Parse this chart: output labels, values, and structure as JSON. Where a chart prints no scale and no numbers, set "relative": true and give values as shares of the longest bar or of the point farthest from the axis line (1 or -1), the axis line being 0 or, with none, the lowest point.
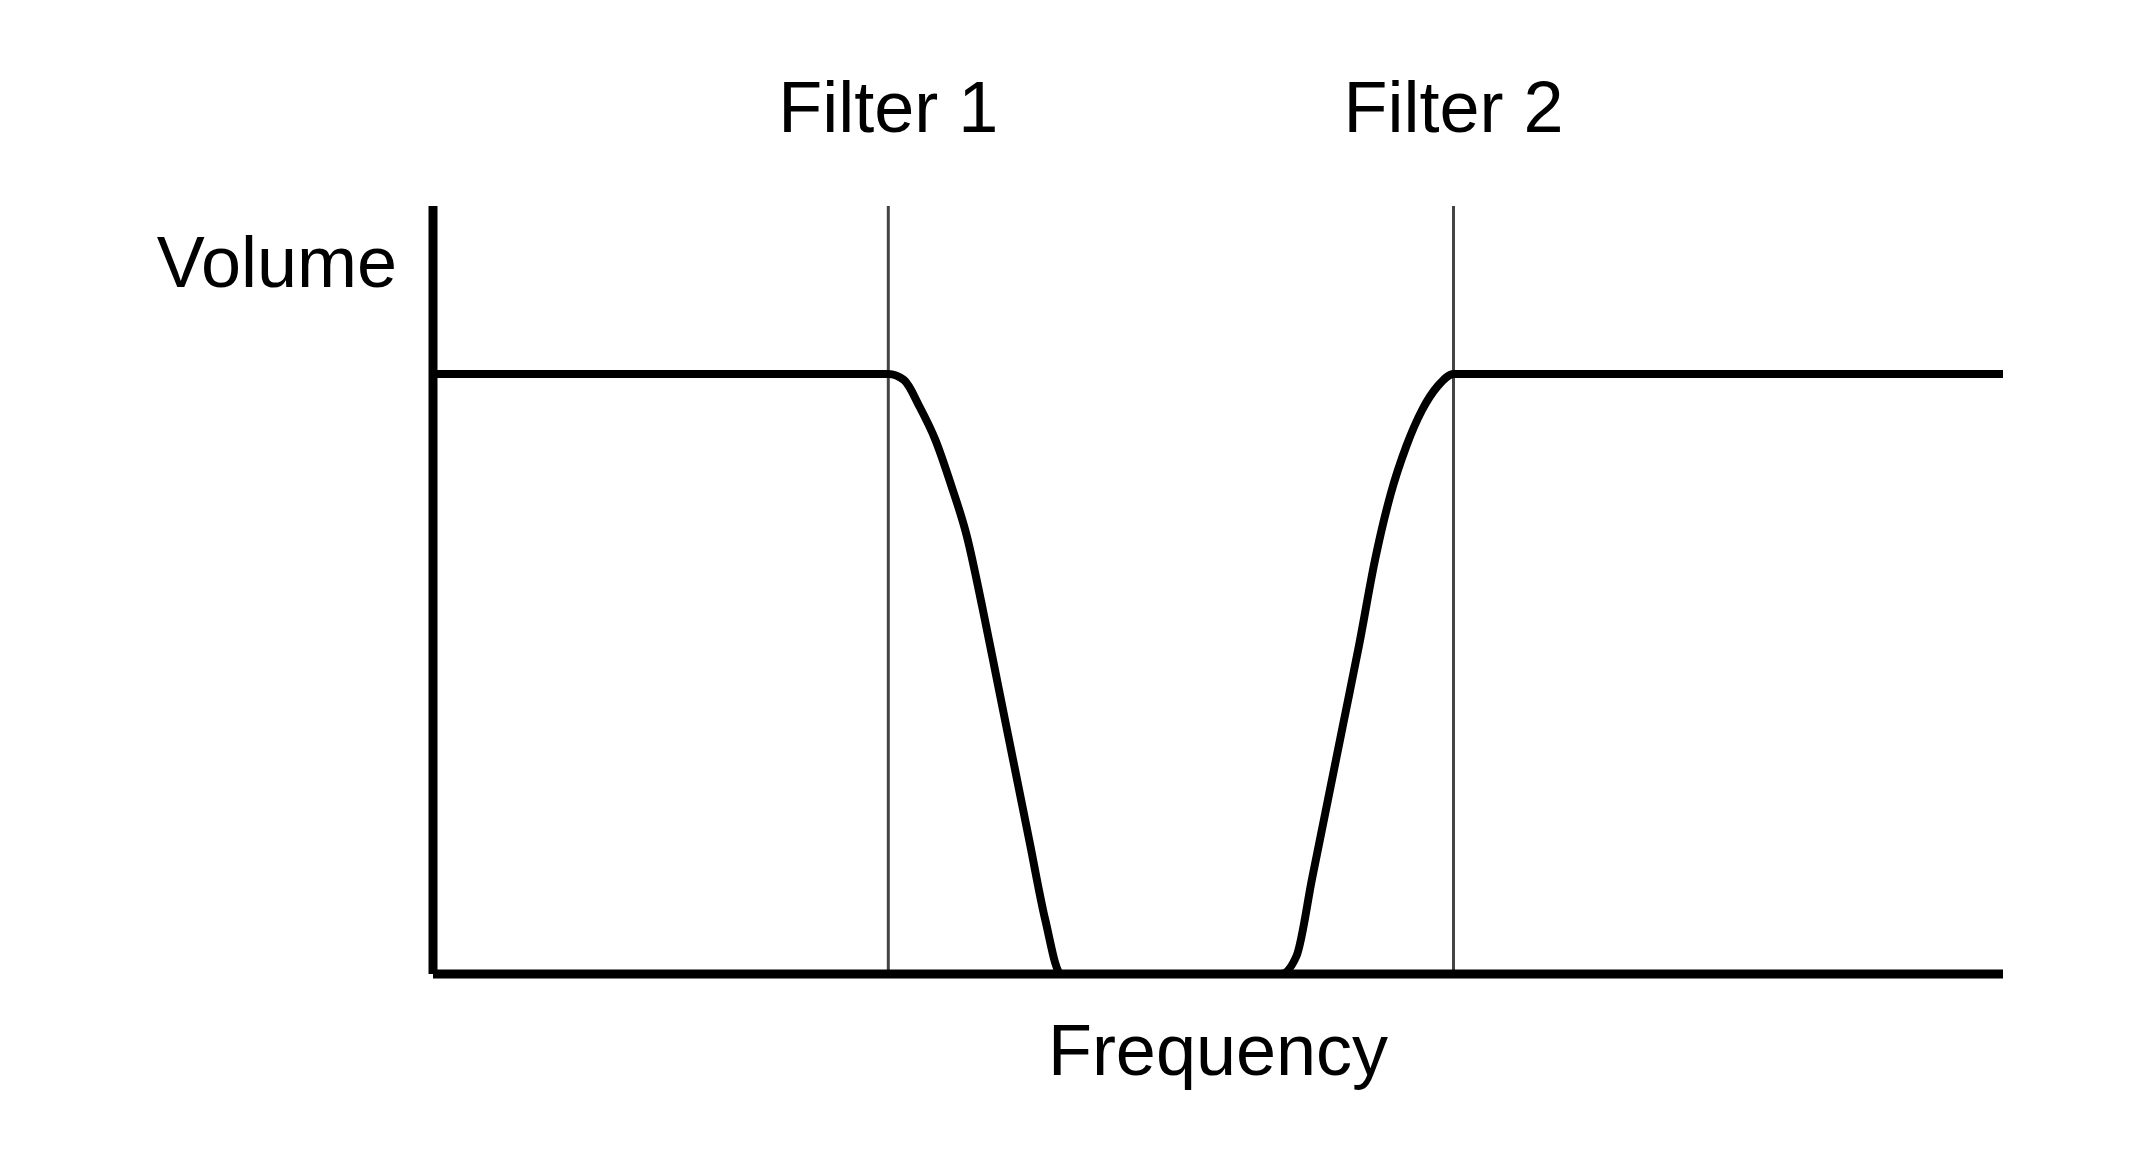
{
  "chart_data": {
    "type": "line",
    "xlabel": "Frequency",
    "ylabel": "Volume",
    "relative": true,
    "categories": [
      null,
      null,
      null,
      null,
      null,
      null,
      null,
      null,
      null,
      null,
      null,
      null,
      null,
      null,
      null,
      null,
      null,
      null,
      null,
      null,
      null,
      null,
      null,
      null,
      null,
      null,
      null,
      null,
      null,
      null,
      null,
      null,
      null,
      null,
      null,
      null,
      null,
      null,
      null,
      null,
      null,
      null,
      null,
      null,
      null,
      null,
      null,
      null,
      null,
      null,
      null,
      null,
      null,
      null,
      null,
      null,
      null,
      null,
      null,
      null,
      null,
      null,
      null,
      null,
      null,
      null,
      null,
      null,
      null,
      null,
      null,
      null,
      null,
      null,
      null,
      null,
      null,
      null,
      null,
      null,
      null,
      null,
      null,
      null,
      null,
      null,
      null,
      null,
      null,
      null,
      null,
      null,
      null,
      null,
      null,
      null,
      null,
      null,
      null,
      null,
      null
    ],
    "series": [
      {
        "color": "#000000",
        "values": [
          1,
          1,
          1,
          1,
          1,
          1,
          1,
          1,
          1,
          1,
          1,
          1,
          1,
          1,
          1,
          1,
          1,
          1,
          1,
          1,
          1,
          1,
          1,
          1,
          1,
          1,
          1,
          1,
          1,
          1,
          0.99,
          0.945,
          0.89,
          0.815,
          0.73,
          0.61,
          0.48,
          0.35,
          0.22,
          0.09,
          0,
          0,
          0,
          0,
          0,
          0,
          0,
          0,
          0,
          0,
          0,
          0,
          0,
          0,
          0,
          0.03,
          0.16,
          0.29,
          0.42,
          0.55,
          0.69,
          0.8,
          0.88,
          0.94,
          0.98,
          1,
          1,
          1,
          1,
          1,
          1,
          1,
          1,
          1,
          1,
          1,
          1,
          1,
          1,
          1,
          1,
          1,
          1,
          1,
          1,
          1,
          1,
          1,
          1,
          1,
          1,
          1,
          1,
          1,
          1,
          1,
          1,
          1,
          1,
          1,
          1
        ]
      }
    ],
    "annotations": [
      "Filter 1",
      "Filter 2"
    ]
  }
}
